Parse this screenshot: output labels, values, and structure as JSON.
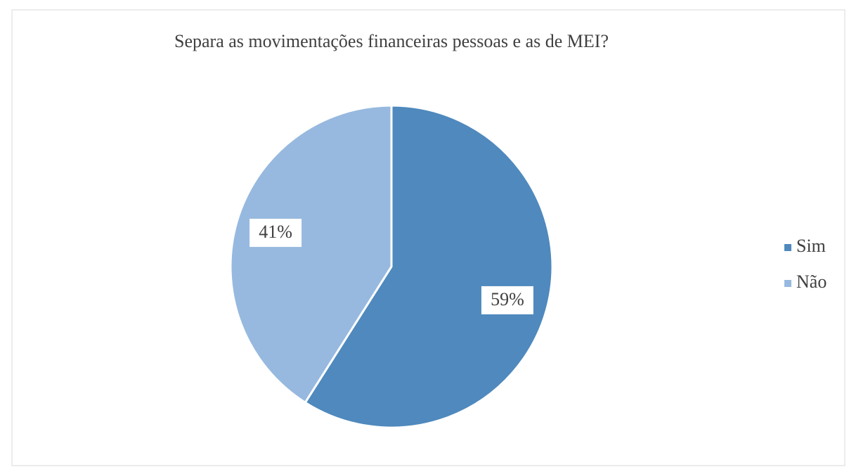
{
  "chart_data": {
    "type": "pie",
    "title": "Separa as movimentações financeiras pessoas e as de MEI?",
    "categories": [
      "Sim",
      "Não"
    ],
    "values": [
      59,
      41
    ],
    "value_labels": [
      "59%",
      "41%"
    ],
    "colors": [
      "#4f89bd",
      "#97b9df"
    ],
    "legend": "right"
  }
}
